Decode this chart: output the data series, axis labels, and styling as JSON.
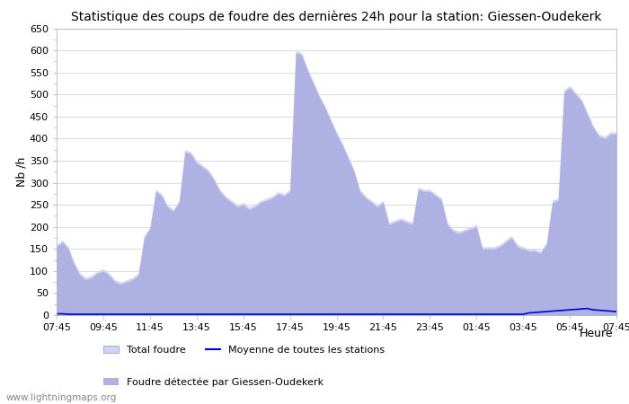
{
  "title": "Statistique des coups de foudre des dernières 24h pour la station: Giessen-Oudekerk",
  "xlabel": "Heure",
  "ylabel": "Nb /h",
  "ylim": [
    0,
    650
  ],
  "yticks": [
    0,
    50,
    100,
    150,
    200,
    250,
    300,
    350,
    400,
    450,
    500,
    550,
    600,
    650
  ],
  "xtick_labels": [
    "07:45",
    "09:45",
    "11:45",
    "13:45",
    "15:45",
    "17:45",
    "19:45",
    "21:45",
    "23:45",
    "01:45",
    "03:45",
    "05:45",
    "07:45"
  ],
  "watermark": "www.lightningmaps.org",
  "color_total": "#d0d4f5",
  "color_detected": "#9090d0",
  "color_mean": "#0000dd",
  "legend_total": "Total foudre",
  "legend_detected": "Foudre détectée par Giessen-Oudekerk",
  "legend_mean": "Moyenne de toutes les stations",
  "background_color": "#ffffff",
  "grid_color": "#cccccc",
  "time_points": 97,
  "total_foudre": [
    160,
    170,
    155,
    120,
    95,
    85,
    90,
    100,
    105,
    95,
    80,
    75,
    80,
    85,
    95,
    180,
    200,
    285,
    275,
    250,
    240,
    260,
    375,
    370,
    350,
    340,
    330,
    310,
    285,
    270,
    260,
    250,
    255,
    245,
    250,
    260,
    265,
    270,
    280,
    275,
    285,
    600,
    595,
    560,
    530,
    500,
    475,
    445,
    415,
    390,
    360,
    330,
    285,
    270,
    260,
    250,
    260,
    210,
    215,
    220,
    215,
    210,
    290,
    285,
    285,
    275,
    265,
    210,
    195,
    190,
    195,
    200,
    205,
    155,
    155,
    155,
    160,
    170,
    180,
    160,
    155,
    150,
    150,
    145,
    165,
    260,
    265,
    510,
    520,
    505,
    490,
    460,
    430,
    410,
    405,
    415,
    415
  ],
  "detected_foudre": [
    155,
    165,
    150,
    115,
    90,
    80,
    85,
    95,
    100,
    90,
    75,
    70,
    75,
    80,
    90,
    175,
    195,
    280,
    270,
    245,
    235,
    255,
    370,
    365,
    345,
    335,
    325,
    305,
    280,
    265,
    255,
    245,
    250,
    240,
    245,
    255,
    260,
    265,
    275,
    270,
    280,
    595,
    590,
    555,
    525,
    495,
    470,
    440,
    410,
    385,
    355,
    325,
    280,
    265,
    255,
    245,
    255,
    205,
    210,
    215,
    210,
    205,
    285,
    280,
    280,
    270,
    260,
    205,
    190,
    185,
    190,
    195,
    200,
    150,
    150,
    150,
    155,
    165,
    175,
    155,
    150,
    145,
    145,
    140,
    160,
    255,
    260,
    505,
    515,
    500,
    485,
    455,
    425,
    405,
    400,
    410,
    410
  ],
  "mean_line": [
    3,
    3,
    2,
    2,
    2,
    2,
    2,
    2,
    2,
    2,
    2,
    2,
    2,
    2,
    2,
    2,
    2,
    2,
    2,
    2,
    2,
    2,
    2,
    2,
    2,
    2,
    2,
    2,
    2,
    2,
    2,
    2,
    2,
    2,
    2,
    2,
    2,
    2,
    2,
    2,
    2,
    2,
    2,
    2,
    2,
    2,
    2,
    2,
    2,
    2,
    2,
    2,
    2,
    2,
    2,
    2,
    2,
    2,
    2,
    2,
    2,
    2,
    2,
    2,
    2,
    2,
    2,
    2,
    2,
    2,
    2,
    2,
    2,
    2,
    2,
    2,
    2,
    2,
    2,
    2,
    2,
    5,
    6,
    7,
    8,
    9,
    10,
    11,
    12,
    13,
    14,
    15,
    12,
    11,
    10,
    9,
    8
  ]
}
